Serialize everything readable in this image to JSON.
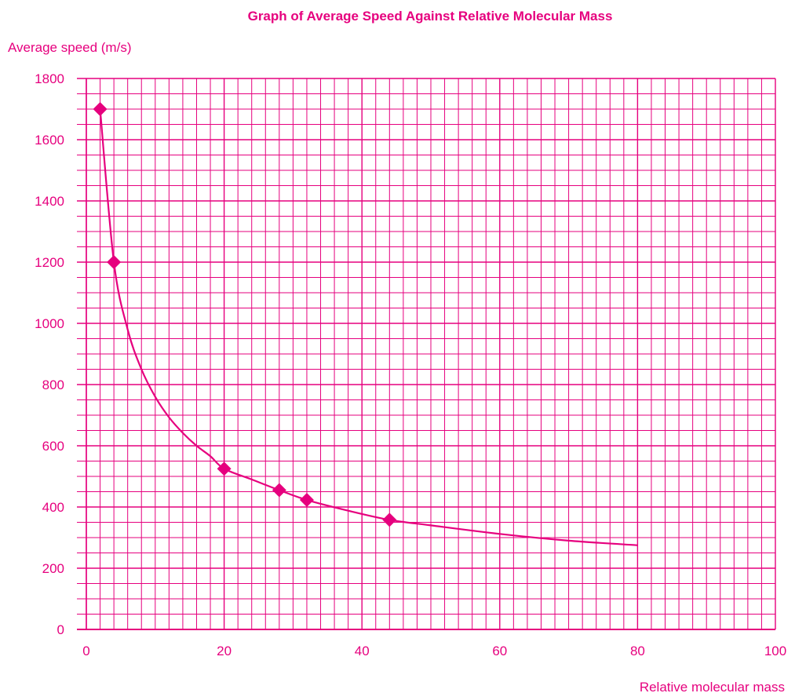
{
  "colors": {
    "accent": "#e6007e",
    "background": "#ffffff"
  },
  "chart_data": {
    "type": "line",
    "title": "Graph of Average Speed Against Relative Molecular Mass",
    "xlabel": "Relative molecular mass",
    "ylabel": "Average speed (m/s)",
    "xlim": [
      0,
      100
    ],
    "ylim": [
      0,
      1800
    ],
    "x_ticks": [
      0,
      20,
      40,
      60,
      80,
      100
    ],
    "x_tick_labels": [
      "0",
      "20",
      "40",
      "60",
      "80",
      "100"
    ],
    "y_ticks": [
      0,
      200,
      400,
      600,
      800,
      1000,
      1200,
      1400,
      1600,
      1800
    ],
    "y_tick_labels": [
      "0",
      "200",
      "400",
      "600",
      "800",
      "1000",
      "1200",
      "1400",
      "1600",
      "1800"
    ],
    "grid": true,
    "points": [
      {
        "x": 2,
        "y": 1700
      },
      {
        "x": 4,
        "y": 1200
      },
      {
        "x": 20,
        "y": 525
      },
      {
        "x": 28,
        "y": 455
      },
      {
        "x": 32,
        "y": 423
      },
      {
        "x": 44,
        "y": 358
      }
    ],
    "curve": [
      {
        "x": 2,
        "y": 1700
      },
      {
        "x": 4,
        "y": 1200
      },
      {
        "x": 6,
        "y": 980
      },
      {
        "x": 8,
        "y": 850
      },
      {
        "x": 10,
        "y": 760
      },
      {
        "x": 12,
        "y": 693
      },
      {
        "x": 14,
        "y": 642
      },
      {
        "x": 16,
        "y": 600
      },
      {
        "x": 18,
        "y": 566
      },
      {
        "x": 20,
        "y": 525
      },
      {
        "x": 24,
        "y": 490
      },
      {
        "x": 28,
        "y": 455
      },
      {
        "x": 32,
        "y": 423
      },
      {
        "x": 38,
        "y": 388
      },
      {
        "x": 44,
        "y": 358
      },
      {
        "x": 50,
        "y": 340
      },
      {
        "x": 60,
        "y": 312
      },
      {
        "x": 70,
        "y": 290
      },
      {
        "x": 80,
        "y": 275
      }
    ]
  }
}
